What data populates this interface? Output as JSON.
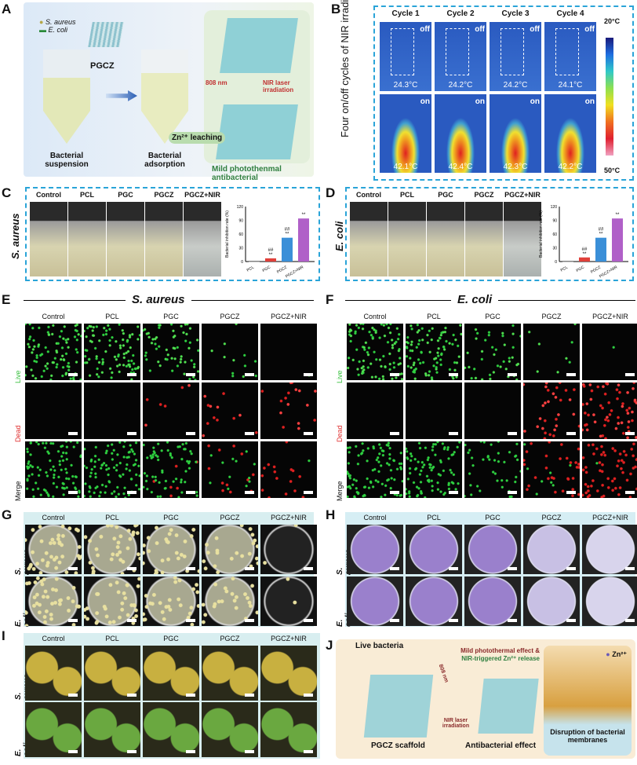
{
  "panels": {
    "A": {
      "letter": "A",
      "legend": [
        "S. aureus",
        "E. coli"
      ],
      "material": "PGCZ",
      "steps": [
        "Bacterial suspension",
        "Bacterial adsorption"
      ],
      "laser": "808 nm",
      "laser_label": "NIR laser irradiation",
      "leaching": "Zn²⁺ leaching",
      "result": "Mild photothenmal antibacterial"
    },
    "B": {
      "letter": "B",
      "ylabel": "Four on/off cycles of NIR irradiation",
      "cycles": [
        "Cycle 1",
        "Cycle 2",
        "Cycle 3",
        "Cycle 4"
      ],
      "off_label": "off",
      "on_label": "on",
      "off_temps": [
        "24.3°C",
        "24.2°C",
        "24.2°C",
        "24.1°C"
      ],
      "on_temps": [
        "42.1°C",
        "42.4°C",
        "42.3°C",
        "42.2°C"
      ],
      "scale_top": "20°C",
      "scale_bottom": "50°C"
    },
    "C": {
      "letter": "C",
      "organism": "S. aureus",
      "groups": [
        "Control",
        "PCL",
        "PGC",
        "PGCZ",
        "PGCZ+NIR"
      ]
    },
    "D": {
      "letter": "D",
      "organism": "E. coli",
      "groups": [
        "Control",
        "PCL",
        "PGC",
        "PGCZ",
        "PGCZ+NIR"
      ]
    },
    "E": {
      "letter": "E",
      "organism": "S. aureus",
      "groups": [
        "Control",
        "PCL",
        "PGC",
        "PGCZ",
        "PGCZ+NIR"
      ],
      "rows": [
        "Live",
        "Dead",
        "Merge"
      ]
    },
    "F": {
      "letter": "F",
      "organism": "E. coli",
      "groups": [
        "Control",
        "PCL",
        "PGC",
        "PGCZ",
        "PGCZ+NIR"
      ],
      "rows": [
        "Live",
        "Dead",
        "Merge"
      ]
    },
    "G": {
      "letter": "G",
      "groups": [
        "Control",
        "PCL",
        "PGC",
        "PGCZ",
        "PGCZ+NIR"
      ],
      "rows": [
        "S. aureus",
        "E. coli"
      ]
    },
    "H": {
      "letter": "H",
      "groups": [
        "Control",
        "PCL",
        "PGC",
        "PGCZ",
        "PGCZ+NIR"
      ],
      "rows": [
        "S. aureus",
        "E. coli"
      ]
    },
    "I": {
      "letter": "I",
      "groups": [
        "Control",
        "PCL",
        "PGC",
        "PGCZ",
        "PGCZ+NIR"
      ],
      "rows": [
        "S. aureus",
        "E. coli"
      ]
    },
    "J": {
      "letter": "J",
      "live": "Live bacteria",
      "laser": "808 nm",
      "laser_label": "NIR laser irradiation",
      "effect_line1": "Mild photothermal effect &",
      "effect_line2": "NIR-triggered Zn²⁺ release",
      "scaffold": "PGCZ scaffold",
      "antibacterial": "Antibacterial effect",
      "disruption": "Disruption of bacterial membranes",
      "ion": "Zn²⁺"
    }
  },
  "chart_data": [
    {
      "type": "bar",
      "panel": "C",
      "ylabel": "Bacterial inhibition rate (%)",
      "categories": [
        "PCL",
        "PGC",
        "PGCZ",
        "PGCZ+NIR"
      ],
      "values": [
        0,
        7,
        52,
        94
      ],
      "significance": [
        "",
        "##\n**",
        "##\n**",
        "**"
      ],
      "ylim": [
        0,
        120
      ],
      "yticks": [
        0,
        30,
        60,
        90,
        120
      ],
      "colors": [
        "#888888",
        "#e0403a",
        "#3a8fd8",
        "#b060c8"
      ]
    },
    {
      "type": "bar",
      "panel": "D",
      "ylabel": "Bacterial inhibition rate (%)",
      "categories": [
        "PCL",
        "PGC",
        "PGCZ",
        "PGCZ+NIR"
      ],
      "values": [
        0,
        9,
        52,
        94
      ],
      "significance": [
        "",
        "##\n**",
        "##\n**",
        "**"
      ],
      "ylim": [
        0,
        120
      ],
      "yticks": [
        0,
        30,
        60,
        90,
        120
      ],
      "colors": [
        "#888888",
        "#e0403a",
        "#3a8fd8",
        "#b060c8"
      ]
    }
  ]
}
